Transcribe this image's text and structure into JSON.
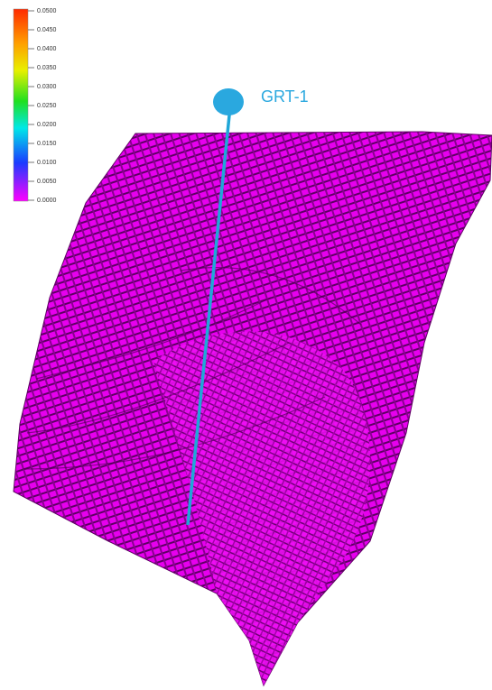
{
  "colorbar": {
    "labels": [
      "0.0500",
      "0.0450",
      "0.0400",
      "0.0350",
      "0.0300",
      "0.0250",
      "0.0200",
      "0.0150",
      "0.0100",
      "0.0050",
      "0.0000"
    ]
  },
  "well": {
    "label": "GRT-1"
  }
}
